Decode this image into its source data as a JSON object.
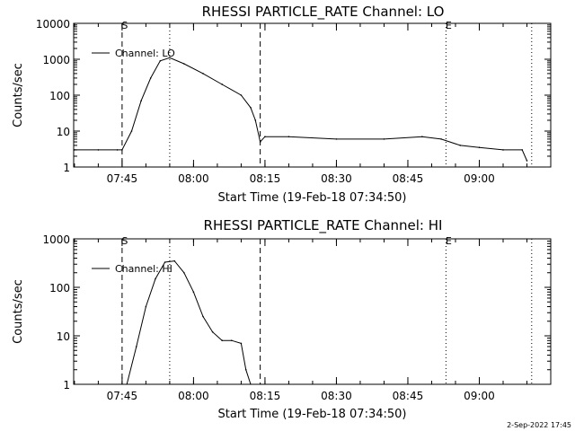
{
  "footer_timestamp": "2-Sep-2022 17:45",
  "chart_data": [
    {
      "type": "line",
      "title": "RHESSI PARTICLE_RATE Channel: LO",
      "xlabel": "Start Time (19-Feb-18 07:34:50)",
      "ylabel": "Counts/sec",
      "y_scale": "log",
      "xlim": [
        "07:34:50",
        "09:15:00"
      ],
      "ylim": [
        1,
        10000
      ],
      "x_tick_labels": [
        "07:45",
        "08:00",
        "08:15",
        "08:30",
        "08:45",
        "09:00"
      ],
      "y_tick_labels": [
        "1",
        "10",
        "100",
        "1000",
        "10000"
      ],
      "legend": "top-left",
      "series": [
        {
          "name": "Channel: LO",
          "x": [
            "07:35",
            "07:40",
            "07:44",
            "07:45",
            "07:47",
            "07:49",
            "07:51",
            "07:53",
            "07:55",
            "07:58",
            "08:02",
            "08:06",
            "08:10",
            "08:12",
            "08:13",
            "08:14",
            "08:15",
            "08:20",
            "08:30",
            "08:40",
            "08:48",
            "08:52",
            "08:56",
            "09:00",
            "09:05",
            "09:09",
            "09:10"
          ],
          "values": [
            3,
            3,
            3,
            3,
            10,
            70,
            300,
            900,
            1100,
            750,
            400,
            200,
            100,
            45,
            20,
            5,
            7,
            7,
            6,
            6,
            7,
            6,
            4,
            3.5,
            3,
            3,
            1.5
          ]
        }
      ],
      "vlines_dashed": [
        "07:45",
        "08:14"
      ],
      "vlines_dotted": [
        "07:55",
        "08:53",
        "09:11"
      ],
      "markers": [
        {
          "label": "S",
          "x": "07:45"
        },
        {
          "label": "E",
          "x": "08:53"
        }
      ]
    },
    {
      "type": "line",
      "title": "RHESSI PARTICLE_RATE Channel: HI",
      "xlabel": "Start Time (19-Feb-18 07:34:50)",
      "ylabel": "Counts/sec",
      "y_scale": "log",
      "xlim": [
        "07:34:50",
        "09:15:00"
      ],
      "ylim": [
        1,
        1000
      ],
      "x_tick_labels": [
        "07:45",
        "08:00",
        "08:15",
        "08:30",
        "08:45",
        "09:00"
      ],
      "y_tick_labels": [
        "1",
        "10",
        "100",
        "1000"
      ],
      "legend": "top-left",
      "series": [
        {
          "name": "Channel: HI",
          "x": [
            "07:46",
            "07:48",
            "07:50",
            "07:52",
            "07:54",
            "07:56",
            "07:58",
            "08:00",
            "08:02",
            "08:04",
            "08:06",
            "08:08",
            "08:10",
            "08:11",
            "08:12"
          ],
          "values": [
            1,
            6,
            40,
            150,
            330,
            350,
            200,
            80,
            25,
            12,
            8,
            8,
            7,
            2,
            1
          ]
        }
      ],
      "vlines_dashed": [
        "07:45",
        "08:14"
      ],
      "vlines_dotted": [
        "07:55",
        "08:53",
        "09:11"
      ],
      "markers": [
        {
          "label": "S",
          "x": "07:45"
        },
        {
          "label": "E",
          "x": "08:53"
        }
      ]
    }
  ]
}
